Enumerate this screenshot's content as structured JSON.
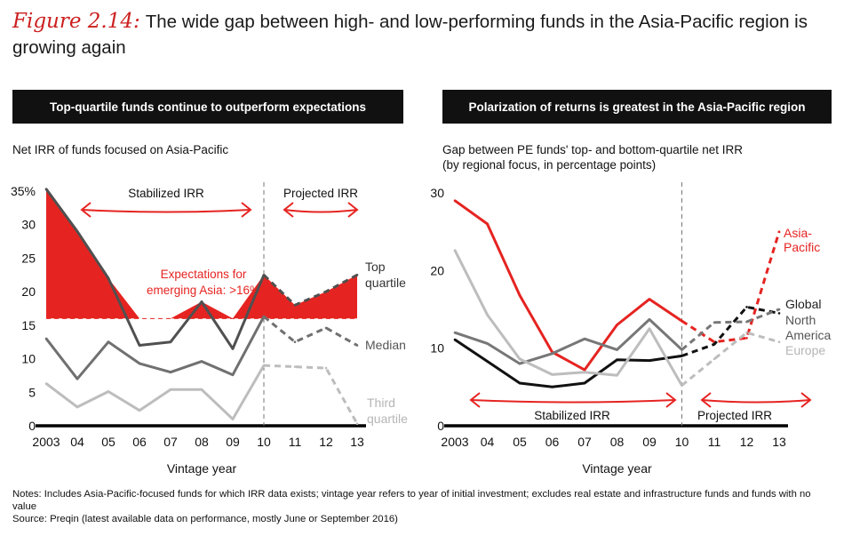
{
  "figure": {
    "label": "Figure 2.14:",
    "title": "The wide gap between high- and low-performing funds in the Asia-Pacific region is growing again"
  },
  "notes": {
    "notes": "Notes: Includes Asia-Pacific-focused funds for which IRR data exists; vintage year refers to year of initial investment; excludes real estate and infrastructure funds and funds with no value",
    "source": "Source: Preqin (latest available data on performance, mostly June or September 2016)"
  },
  "colors": {
    "red": "#e52421",
    "dark": "#505050",
    "gray": "#8c8c8c",
    "light": "#bdbdbd",
    "black": "#111111"
  },
  "chart_data": [
    {
      "type": "line",
      "banner": "Top-quartile funds continue to outperform expectations",
      "subtitle": "Net IRR of funds focused on Asia-Pacific",
      "xlabel": "Vintage year",
      "ylabel": "",
      "categories": [
        "2003",
        "04",
        "05",
        "06",
        "07",
        "08",
        "09",
        "10",
        "11",
        "12",
        "13"
      ],
      "ylim": [
        0,
        35
      ],
      "yticks": [
        "0",
        "5",
        "10",
        "15",
        "20",
        "25",
        "30",
        "35%"
      ],
      "projected_from_index": 7,
      "regions": {
        "stabilized": "Stabilized IRR",
        "projected": "Projected IRR"
      },
      "expectation": {
        "value": 16,
        "label_line1": "Expectations for",
        "label_line2": "emerging Asia: >16%"
      },
      "series": [
        {
          "name": "Top quartile",
          "label_line1": "Top",
          "label_line2": "quartile",
          "color": "#505050",
          "values": [
            35.3,
            29,
            22,
            12,
            12.5,
            18.5,
            11.5,
            22.5,
            18,
            20,
            22.5
          ]
        },
        {
          "name": "Median",
          "label_line1": "Median",
          "label_line2": "",
          "color": "#707070",
          "values": [
            13,
            7,
            12.5,
            9.3,
            8,
            9.6,
            7.6,
            16.3,
            12.5,
            14.6,
            12
          ]
        },
        {
          "name": "Third quartile",
          "label_line1": "Third",
          "label_line2": "quartile",
          "color": "#bdbdbd",
          "values": [
            6.3,
            2.8,
            5.1,
            2.3,
            5.4,
            5.4,
            1,
            9,
            8.8,
            8.6,
            0.3
          ]
        }
      ]
    },
    {
      "type": "line",
      "banner": "Polarization of returns is greatest in the Asia-Pacific region",
      "subtitle_line1": "Gap between PE funds' top- and bottom-quartile net IRR",
      "subtitle_line2": "(by regional focus, in percentage points)",
      "xlabel": "Vintage year",
      "ylabel": "",
      "categories": [
        "2003",
        "04",
        "05",
        "06",
        "07",
        "08",
        "09",
        "10",
        "11",
        "12",
        "13"
      ],
      "ylim": [
        0,
        30
      ],
      "yticks": [
        "0",
        "10",
        "20",
        "30"
      ],
      "projected_from_index": 7,
      "regions": {
        "stabilized": "Stabilized IRR",
        "projected": "Projected IRR"
      },
      "series": [
        {
          "name": "Asia-Pacific",
          "label_line1": "Asia-",
          "label_line2": "Pacific",
          "color": "#e52421",
          "values": [
            29,
            26,
            16.8,
            9.5,
            7.2,
            13,
            16.3,
            13.5,
            10.8,
            11.3,
            25
          ]
        },
        {
          "name": "Global",
          "label_line1": "Global",
          "label_line2": "",
          "color": "#111111",
          "values": [
            11.1,
            8.3,
            5.5,
            5,
            5.5,
            8.5,
            8.4,
            9,
            10.5,
            15.3,
            14.5
          ]
        },
        {
          "name": "North America",
          "label_line1": "North",
          "label_line2": "America",
          "color": "#777777",
          "values": [
            12,
            10.6,
            8,
            9.3,
            11.2,
            9.8,
            13.7,
            9.8,
            13.3,
            13.4,
            15
          ]
        },
        {
          "name": "Europe",
          "label_line1": "Europe",
          "label_line2": "",
          "color": "#bdbdbd",
          "values": [
            22.6,
            14.3,
            8.6,
            6.6,
            6.9,
            6.5,
            12.5,
            5.2,
            8.6,
            12,
            10.8
          ]
        }
      ]
    }
  ]
}
